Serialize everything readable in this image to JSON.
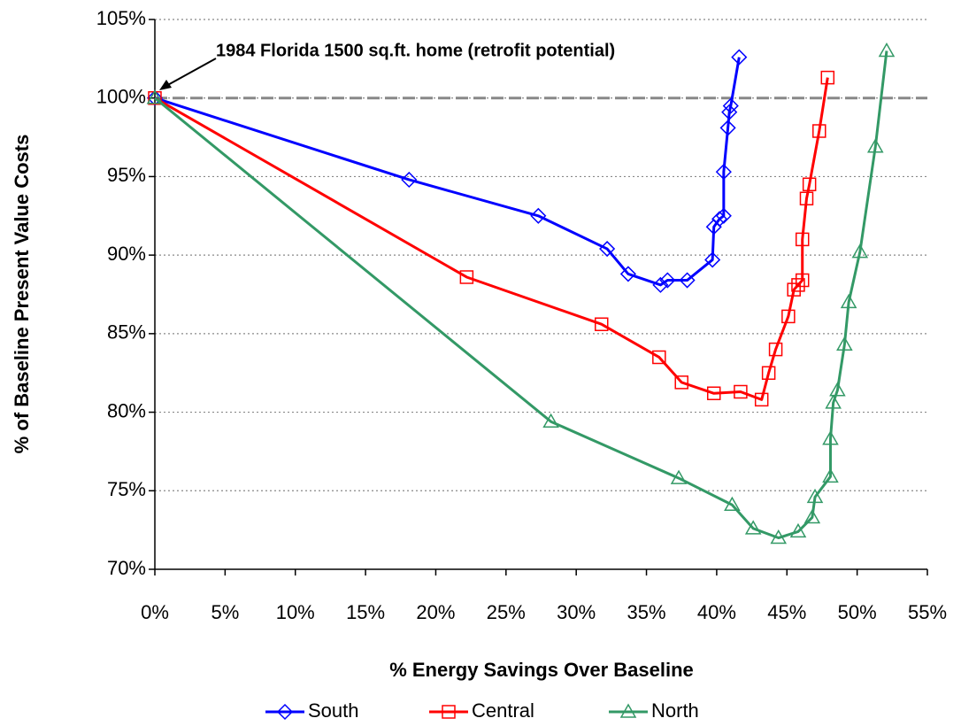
{
  "chart_data": {
    "type": "line",
    "xlabel": "% Energy Savings Over Baseline",
    "ylabel": "% of Baseline Present Value Costs",
    "annotation": "1984 Florida 1500 sq.ft. home (retrofit potential)",
    "reference_line": 100,
    "grid": true,
    "legend": "bottom",
    "xlim": [
      0,
      55
    ],
    "ylim": [
      70,
      105
    ],
    "xticks": [
      {
        "value": 0,
        "label": "0%"
      },
      {
        "value": 5,
        "label": "5%"
      },
      {
        "value": 10,
        "label": "10%"
      },
      {
        "value": 15,
        "label": "15%"
      },
      {
        "value": 20,
        "label": "20%"
      },
      {
        "value": 25,
        "label": "25%"
      },
      {
        "value": 30,
        "label": "30%"
      },
      {
        "value": 35,
        "label": "35%"
      },
      {
        "value": 40,
        "label": "40%"
      },
      {
        "value": 45,
        "label": "45%"
      },
      {
        "value": 50,
        "label": "50%"
      },
      {
        "value": 55,
        "label": "55%"
      }
    ],
    "yticks": [
      {
        "value": 70,
        "label": "70%"
      },
      {
        "value": 75,
        "label": "75%"
      },
      {
        "value": 80,
        "label": "80%"
      },
      {
        "value": 85,
        "label": "85%"
      },
      {
        "value": 90,
        "label": "90%"
      },
      {
        "value": 95,
        "label": "95%"
      },
      {
        "value": 100,
        "label": "100%"
      },
      {
        "value": 105,
        "label": "105%"
      }
    ],
    "series": [
      {
        "name": "South",
        "color": "#0000ff",
        "marker": "diamond",
        "x": [
          0,
          18.1,
          27.3,
          32.2,
          33.7,
          36.0,
          36.5,
          37.9,
          39.7,
          39.8,
          40.2,
          40.5,
          40.5,
          40.8,
          40.9,
          41.0,
          41.6
        ],
        "values": [
          100,
          94.8,
          92.5,
          90.4,
          88.8,
          88.1,
          88.4,
          88.4,
          89.7,
          91.8,
          92.3,
          92.5,
          95.3,
          98.1,
          99.1,
          99.5,
          102.6
        ]
      },
      {
        "name": "Central",
        "color": "#ff0000",
        "marker": "square",
        "x": [
          0,
          22.2,
          31.8,
          35.9,
          37.5,
          39.8,
          41.7,
          43.2,
          43.7,
          44.2,
          45.1,
          45.5,
          45.8,
          46.1,
          46.1,
          46.4,
          46.6,
          47.3,
          47.9
        ],
        "values": [
          100,
          88.6,
          85.6,
          83.5,
          81.9,
          81.2,
          81.3,
          80.8,
          82.5,
          84.0,
          86.1,
          87.8,
          88.1,
          88.4,
          91.0,
          93.6,
          94.5,
          97.9,
          101.3
        ]
      },
      {
        "name": "North",
        "color": "#339966",
        "marker": "triangle",
        "x": [
          0,
          28.2,
          37.3,
          41.1,
          42.6,
          44.4,
          45.8,
          46.8,
          47.0,
          48.1,
          48.1,
          48.3,
          48.6,
          49.1,
          49.4,
          50.2,
          51.3,
          52.1
        ],
        "values": [
          100,
          79.4,
          75.8,
          74.1,
          72.6,
          72.0,
          72.4,
          73.3,
          74.6,
          75.9,
          78.3,
          80.6,
          81.4,
          84.3,
          87.0,
          90.2,
          96.9,
          103.0
        ]
      }
    ]
  }
}
